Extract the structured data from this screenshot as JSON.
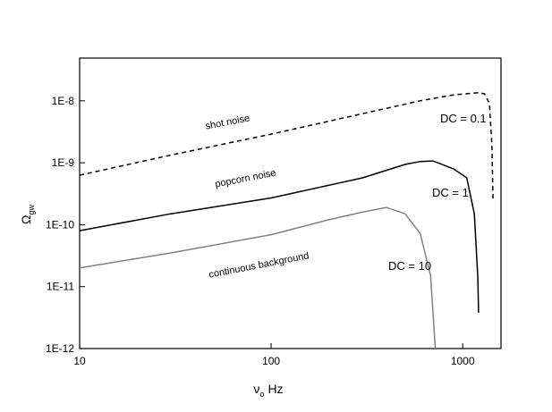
{
  "chart_data": {
    "type": "line",
    "y_label": "Ω",
    "y_label_sub": "gw",
    "x_label": "ν",
    "x_label_sub": "o",
    "x_label_unit": "Hz",
    "x_scale": "log",
    "y_scale": "log",
    "xlim": [
      10,
      1585
    ],
    "ylim": [
      1e-12,
      4.9e-08
    ],
    "xticks": [
      10,
      100,
      1000
    ],
    "yticks": [
      {
        "value": 1e-12,
        "label": "1E-12"
      },
      {
        "value": 1e-11,
        "label": "1E-11"
      },
      {
        "value": 1e-10,
        "label": "1E-10"
      },
      {
        "value": 1e-09,
        "label": "1E-9"
      },
      {
        "value": 1e-08,
        "label": "1E-8"
      }
    ],
    "series": [
      {
        "name": "shot noise",
        "color": "#000000",
        "line_style": "dashed",
        "x": [
          10,
          30,
          100,
          300,
          600,
          900,
          1200,
          1300,
          1380,
          1420,
          1440
        ],
        "values": [
          6.3e-10,
          1.33e-09,
          2.9e-09,
          6.2e-09,
          1e-08,
          1.25e-08,
          1.35e-08,
          1.3e-08,
          9e-09,
          2e-09,
          2.5e-10
        ]
      },
      {
        "name": "popcorn noise",
        "color": "#000000",
        "line_style": "solid",
        "x": [
          10,
          30,
          100,
          300,
          500,
          600,
          700,
          900,
          1050,
          1150,
          1200,
          1210
        ],
        "values": [
          8e-11,
          1.5e-10,
          2.7e-10,
          5.7e-10,
          9.4e-10,
          1.05e-09,
          1.07e-09,
          7.9e-10,
          5.7e-10,
          1.5e-10,
          1.4e-11,
          3.8e-12
        ]
      },
      {
        "name": "continuous background",
        "color": "#808080",
        "line_style": "solid",
        "x": [
          10,
          30,
          100,
          200,
          300,
          400,
          500,
          600,
          680,
          720
        ],
        "values": [
          2e-11,
          3.5e-11,
          6.9e-11,
          1.2e-10,
          1.6e-10,
          1.9e-10,
          1.5e-10,
          7.2e-11,
          1.5e-11,
          1e-12
        ]
      }
    ],
    "annotations": [
      "DC = 0.1",
      "DC = 1",
      "DC = 10"
    ]
  }
}
